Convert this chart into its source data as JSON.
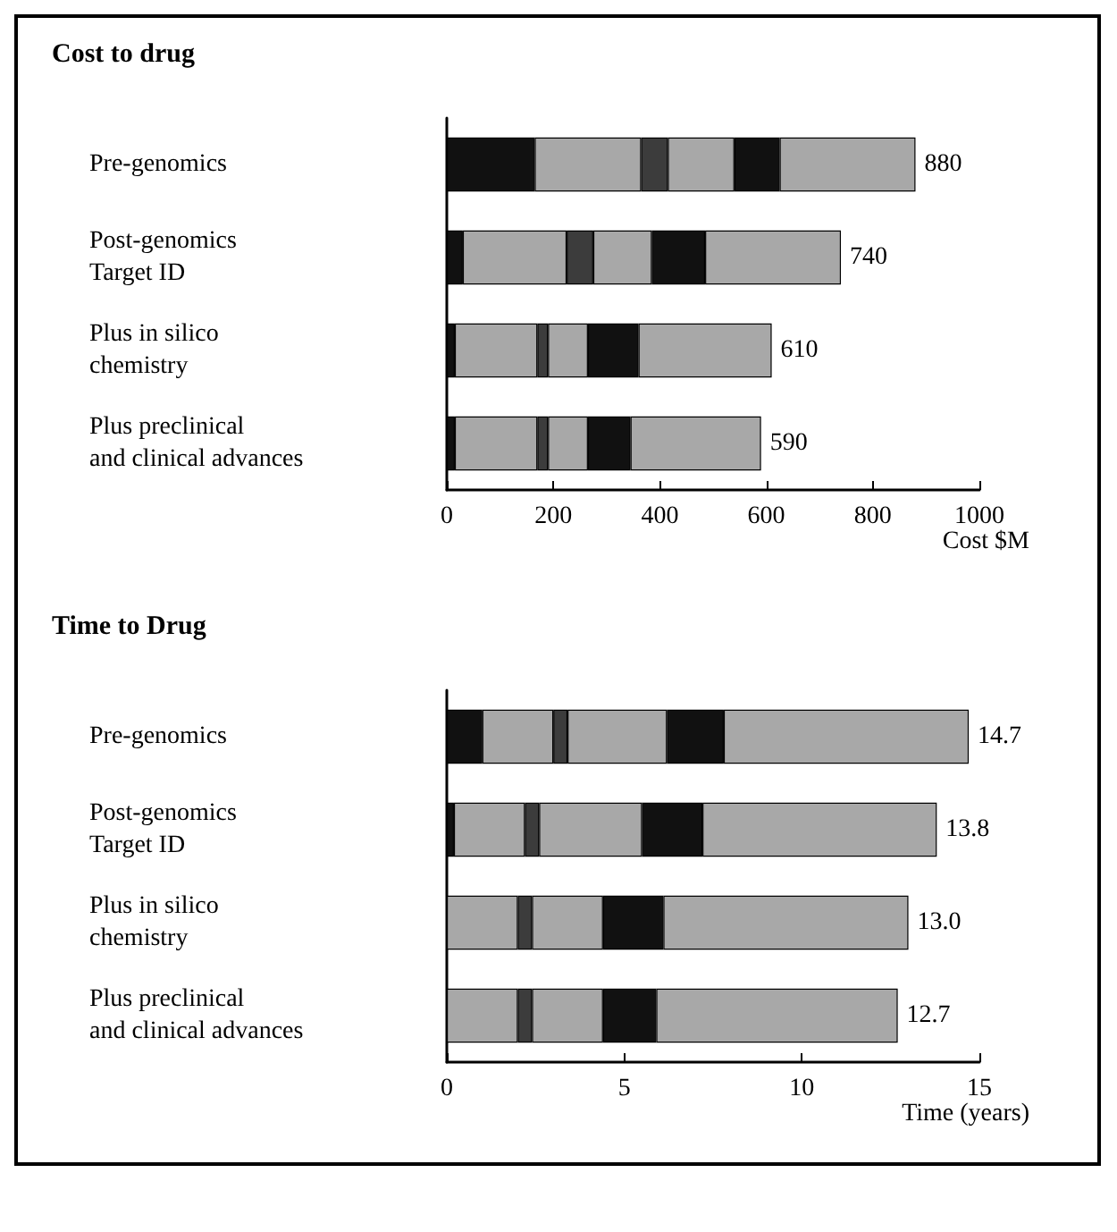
{
  "chart_data": [
    {
      "type": "bar",
      "title": "Cost to drug",
      "orientation": "horizontal",
      "stacked": true,
      "xlabel": "Cost $M",
      "categories": [
        "Pre-genomics",
        "Post-genomics\nTarget ID",
        "Plus in silico\nchemistry",
        "Plus preclinical\nand clinical advances"
      ],
      "series": [
        {
          "color": "#111111",
          "values": [
            165,
            30,
            15,
            15
          ]
        },
        {
          "color": "#a8a8a8",
          "values": [
            200,
            195,
            155,
            155
          ]
        },
        {
          "color": "#3c3c3c",
          "values": [
            50,
            50,
            20,
            20
          ]
        },
        {
          "color": "#a8a8a8",
          "values": [
            125,
            110,
            75,
            75
          ]
        },
        {
          "color": "#111111",
          "values": [
            85,
            100,
            95,
            80
          ]
        },
        {
          "color": "#a8a8a8",
          "values": [
            255,
            255,
            250,
            245
          ]
        }
      ],
      "totals": [
        "880",
        "740",
        "610",
        "590"
      ],
      "xlim": [
        0,
        1000
      ],
      "xticks": [
        0,
        200,
        400,
        600,
        800,
        1000
      ]
    },
    {
      "type": "bar",
      "title": "Time to Drug",
      "orientation": "horizontal",
      "stacked": true,
      "xlabel": "Time (years)",
      "categories": [
        "Pre-genomics",
        "Post-genomics\nTarget ID",
        "Plus in silico\nchemistry",
        "Plus preclinical\nand clinical advances"
      ],
      "series": [
        {
          "color": "#111111",
          "values": [
            1.0,
            0.2,
            0,
            0
          ]
        },
        {
          "color": "#a8a8a8",
          "values": [
            2.0,
            2.0,
            2.0,
            2.0
          ]
        },
        {
          "color": "#3c3c3c",
          "values": [
            0.4,
            0.4,
            0.4,
            0.4
          ]
        },
        {
          "color": "#a8a8a8",
          "values": [
            2.8,
            2.9,
            2.0,
            2.0
          ]
        },
        {
          "color": "#111111",
          "values": [
            1.6,
            1.7,
            1.7,
            1.5
          ]
        },
        {
          "color": "#a8a8a8",
          "values": [
            6.9,
            6.6,
            6.9,
            6.8
          ]
        }
      ],
      "totals": [
        "14.7",
        "13.8",
        "13.0",
        "12.7"
      ],
      "xlim": [
        0,
        15
      ],
      "xticks": [
        0,
        5,
        10,
        15
      ]
    }
  ]
}
